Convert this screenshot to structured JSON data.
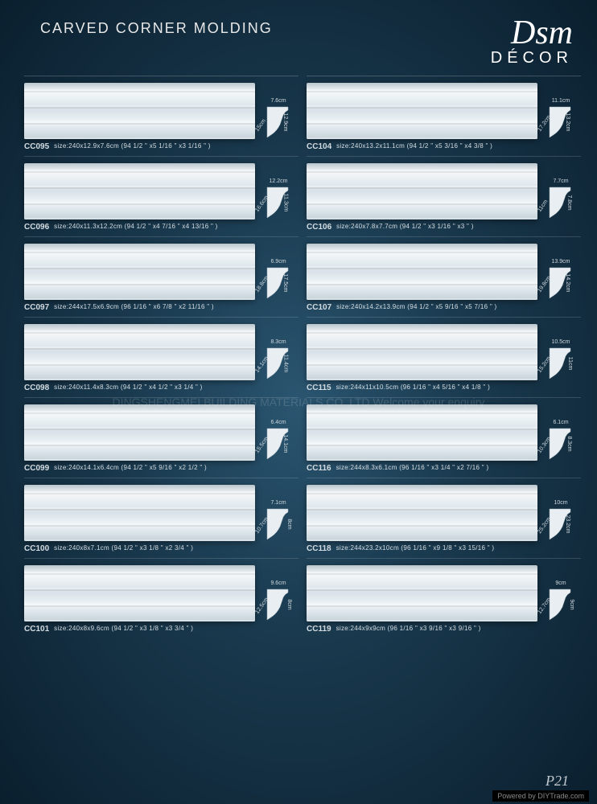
{
  "title": "CARVED CORNER MOLDING",
  "brand_script": "Dsm",
  "brand_sub": "DÉCOR",
  "watermark": "DINGSHENGMEI BUILDING MATERIALS CO.,LTD Welcome your enquiry",
  "page_num": "P21",
  "footer": "Powered by DIYTrade.com",
  "left": [
    {
      "code": "CC095",
      "size": "size:240x12.9x7.6cm  (94 1/2 \" x5 1/16 \" x3 1/16 \" )",
      "top": "7.6cm",
      "side": "12.9cm",
      "diag": "15cm"
    },
    {
      "code": "CC096",
      "size": "size:240x11.3x12.2cm  (94 1/2 \" x4 7/16 \" x4 13/16 \" )",
      "top": "12.2cm",
      "side": "11.3cm",
      "diag": "16.6cm"
    },
    {
      "code": "CC097",
      "size": "size:244x17.5x6.9cm  (96 1/16 \" x6 7/8 \" x2 11/16 \" )",
      "top": "6.9cm",
      "side": "17.5cm",
      "diag": "18.8cm"
    },
    {
      "code": "CC098",
      "size": "size:240x11.4x8.3cm  (94 1/2 \" x4 1/2 \" x3 1/4 \" )",
      "top": "8.3cm",
      "side": "11.4cm",
      "diag": "14.1cm"
    },
    {
      "code": "CC099",
      "size": "size:240x14.1x6.4cm  (94 1/2 \" x5 9/16 \" x2 1/2 \" )",
      "top": "6.4cm",
      "side": "14.1cm",
      "diag": "15.5cm"
    },
    {
      "code": "CC100",
      "size": "size:240x8x7.1cm  (94 1/2 \" x3 1/8 \" x2 3/4 \" )",
      "top": "7.1cm",
      "side": "8cm",
      "diag": "10.7cm"
    },
    {
      "code": "CC101",
      "size": "size:240x8x9.6cm  (94 1/2 \" x3 1/8 \" x3 3/4 \" )",
      "top": "9.6cm",
      "side": "8cm",
      "diag": "12.5cm"
    }
  ],
  "right": [
    {
      "code": "CC104",
      "size": "size:240x13.2x11.1cm  (94 1/2 \" x5 3/16 \" x4 3/8 \" )",
      "top": "11.1cm",
      "side": "13.2cm",
      "diag": "17.2cm"
    },
    {
      "code": "CC106",
      "size": "size:240x7.8x7.7cm  (94 1/2 \" x3 1/16 \" x3 \" )",
      "top": "7.7cm",
      "side": "7.8cm",
      "diag": "11cm"
    },
    {
      "code": "CC107",
      "size": "size:240x14.2x13.9cm  (94 1/2 \" x5 9/16 \" x5 7/16 \" )",
      "top": "13.9cm",
      "side": "14.2cm",
      "diag": "19.8cm"
    },
    {
      "code": "CC115",
      "size": "size:244x11x10.5cm  (96 1/16 \" x4 5/16 \" x4 1/8 \" )",
      "top": "10.5cm",
      "side": "11cm",
      "diag": "15.2cm"
    },
    {
      "code": "CC116",
      "size": "size:244x8.3x6.1cm  (96 1/16 \" x3 1/4 \" x2 7/16 \" )",
      "top": "6.1cm",
      "side": "8.3cm",
      "diag": "10.3cm"
    },
    {
      "code": "CC118",
      "size": "size:244x23.2x10cm  (96 1/16 \" x9 1/8 \" x3 15/16 \" )",
      "top": "10cm",
      "side": "23.2cm",
      "diag": "25.2cm"
    },
    {
      "code": "CC119",
      "size": "size:244x9x9cm  (96 1/16 \" x3 9/16 \" x3 9/16 \" )",
      "top": "9cm",
      "side": "9cm",
      "diag": "12.7cm"
    }
  ]
}
